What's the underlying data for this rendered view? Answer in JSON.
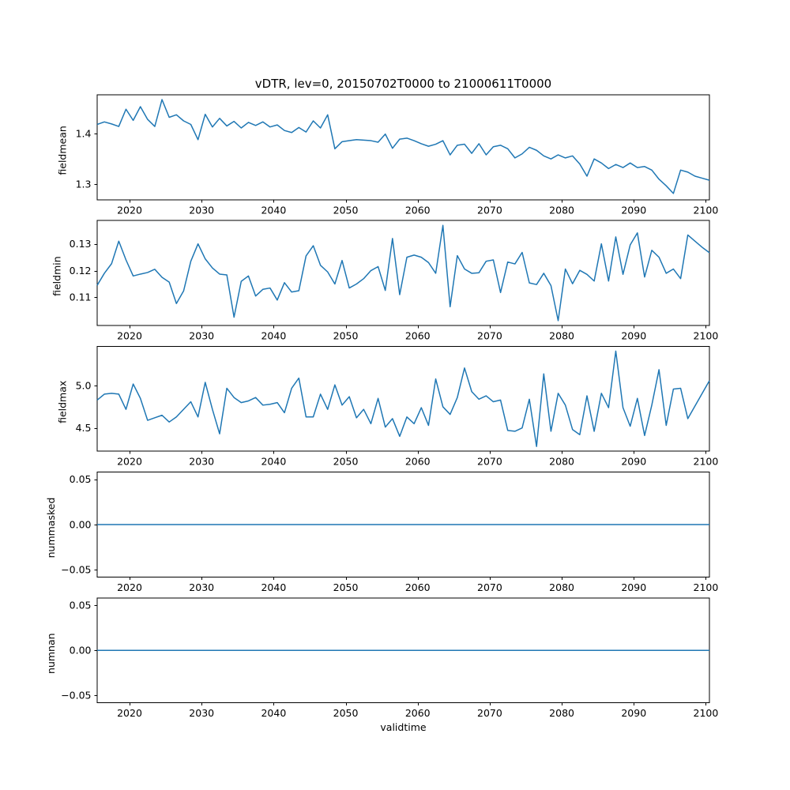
{
  "figure": {
    "title": "vDTR, lev=0, 20150702T0000 to 21000611T0000",
    "background_color": "#ffffff",
    "axis_color": "#000000",
    "text_color": "#000000",
    "line_color": "#1f77b4"
  },
  "chart_data": {
    "type": "line",
    "title": "vDTR, lev=0, 20150702T0000 to 21000611T0000",
    "xlabel": "validtime",
    "legend": "none",
    "grid": false,
    "xlim": [
      2015.5,
      2100.5
    ],
    "xticks": [
      2020,
      2030,
      2040,
      2050,
      2060,
      2070,
      2080,
      2090,
      2100
    ],
    "x": [
      2015.5,
      2016.5,
      2017.5,
      2018.5,
      2019.5,
      2020.5,
      2021.5,
      2022.5,
      2023.5,
      2024.5,
      2025.5,
      2026.5,
      2027.5,
      2028.5,
      2029.5,
      2030.5,
      2031.5,
      2032.5,
      2033.5,
      2034.5,
      2035.5,
      2036.5,
      2037.5,
      2038.5,
      2039.5,
      2040.5,
      2041.5,
      2042.5,
      2043.5,
      2044.5,
      2045.5,
      2046.5,
      2047.5,
      2048.5,
      2049.5,
      2050.5,
      2051.5,
      2052.5,
      2053.5,
      2054.5,
      2055.5,
      2056.5,
      2057.5,
      2058.5,
      2059.5,
      2060.5,
      2061.5,
      2062.5,
      2063.5,
      2064.5,
      2065.5,
      2066.5,
      2067.5,
      2068.5,
      2069.5,
      2070.5,
      2071.5,
      2072.5,
      2073.5,
      2074.5,
      2075.5,
      2076.5,
      2077.5,
      2078.5,
      2079.5,
      2080.5,
      2081.5,
      2082.5,
      2083.5,
      2084.5,
      2085.5,
      2086.5,
      2087.5,
      2088.5,
      2089.5,
      2090.5,
      2091.5,
      2092.5,
      2093.5,
      2094.5,
      2095.5,
      2096.5,
      2097.5,
      2098.5,
      2099.5,
      2100.5
    ],
    "subplots": [
      {
        "ylabel": "fieldmean",
        "ylim": [
          1.2696,
          1.4764
        ],
        "ytick_values": [
          1.3,
          1.4
        ],
        "ytick_labels": [
          "1.3",
          "1.4"
        ],
        "values": [
          1.418,
          1.423,
          1.419,
          1.414,
          1.448,
          1.426,
          1.453,
          1.428,
          1.414,
          1.467,
          1.432,
          1.437,
          1.425,
          1.418,
          1.388,
          1.438,
          1.413,
          1.43,
          1.415,
          1.424,
          1.411,
          1.422,
          1.416,
          1.423,
          1.413,
          1.417,
          1.406,
          1.402,
          1.412,
          1.403,
          1.425,
          1.411,
          1.437,
          1.37,
          1.384,
          1.386,
          1.388,
          1.387,
          1.386,
          1.383,
          1.399,
          1.371,
          1.389,
          1.391,
          1.386,
          1.38,
          1.375,
          1.379,
          1.386,
          1.358,
          1.377,
          1.379,
          1.361,
          1.38,
          1.358,
          1.374,
          1.377,
          1.37,
          1.352,
          1.36,
          1.373,
          1.367,
          1.356,
          1.35,
          1.358,
          1.352,
          1.356,
          1.34,
          1.316,
          1.35,
          1.342,
          1.331,
          1.339,
          1.333,
          1.342,
          1.333,
          1.335,
          1.328,
          1.31,
          1.297,
          1.282,
          1.328,
          1.324,
          1.316,
          1.312,
          1.308
        ]
      },
      {
        "ylabel": "fieldmin",
        "ylim": [
          0.0995,
          0.1387
        ],
        "ytick_values": [
          0.11,
          0.12,
          0.13
        ],
        "ytick_labels": [
          "0.11",
          "0.12",
          "0.13"
        ],
        "values": [
          0.1145,
          0.119,
          0.1226,
          0.131,
          0.124,
          0.118,
          0.1187,
          0.1193,
          0.1205,
          0.1175,
          0.1157,
          0.1077,
          0.1124,
          0.1235,
          0.13,
          0.1244,
          0.121,
          0.1187,
          0.1184,
          0.1026,
          0.116,
          0.118,
          0.1105,
          0.113,
          0.1135,
          0.109,
          0.1155,
          0.112,
          0.1125,
          0.1255,
          0.1293,
          0.122,
          0.1195,
          0.115,
          0.1238,
          0.1135,
          0.115,
          0.117,
          0.12,
          0.1215,
          0.1126,
          0.132,
          0.111,
          0.125,
          0.1258,
          0.125,
          0.123,
          0.119,
          0.1369,
          0.1065,
          0.1256,
          0.1206,
          0.119,
          0.1192,
          0.1235,
          0.124,
          0.1118,
          0.1232,
          0.1225,
          0.1268,
          0.1154,
          0.1148,
          0.119,
          0.1144,
          0.1013,
          0.1206,
          0.1151,
          0.1201,
          0.1186,
          0.1161,
          0.13,
          0.1161,
          0.1326,
          0.1186,
          0.1296,
          0.1341,
          0.1176,
          0.1276,
          0.125,
          0.119,
          0.1206,
          0.117,
          0.1333,
          0.131,
          0.1287,
          0.1267
        ]
      },
      {
        "ylabel": "fieldmax",
        "ylim": [
          4.2235,
          5.4665
        ],
        "ytick_values": [
          4.5,
          5.0
        ],
        "ytick_labels": [
          "4.5",
          "5.0"
        ],
        "values": [
          4.83,
          4.9,
          4.91,
          4.9,
          4.72,
          5.02,
          4.85,
          4.59,
          4.62,
          4.65,
          4.57,
          4.63,
          4.72,
          4.81,
          4.63,
          5.04,
          4.72,
          4.43,
          4.97,
          4.86,
          4.8,
          4.82,
          4.86,
          4.77,
          4.78,
          4.8,
          4.68,
          4.97,
          5.09,
          4.63,
          4.63,
          4.9,
          4.72,
          5.01,
          4.77,
          4.87,
          4.62,
          4.72,
          4.55,
          4.85,
          4.51,
          4.61,
          4.4,
          4.63,
          4.55,
          4.74,
          4.53,
          5.08,
          4.75,
          4.66,
          4.86,
          5.21,
          4.93,
          4.84,
          4.88,
          4.81,
          4.83,
          4.47,
          4.46,
          4.5,
          4.84,
          4.28,
          5.14,
          4.46,
          4.91,
          4.77,
          4.48,
          4.42,
          4.88,
          4.46,
          4.91,
          4.74,
          5.41,
          4.74,
          4.52,
          4.85,
          4.41,
          4.77,
          5.19,
          4.53,
          4.96,
          4.97,
          4.61,
          4.76,
          4.91,
          5.06
        ]
      },
      {
        "ylabel": "nummasked",
        "ylim": [
          -0.058,
          0.058
        ],
        "ytick_values": [
          -0.05,
          0.0,
          0.05
        ],
        "ytick_labels": [
          "−0.05",
          "0.00",
          "0.05"
        ],
        "values": [
          0,
          0,
          0,
          0,
          0,
          0,
          0,
          0,
          0,
          0,
          0,
          0,
          0,
          0,
          0,
          0,
          0,
          0,
          0,
          0,
          0,
          0,
          0,
          0,
          0,
          0,
          0,
          0,
          0,
          0,
          0,
          0,
          0,
          0,
          0,
          0,
          0,
          0,
          0,
          0,
          0,
          0,
          0,
          0,
          0,
          0,
          0,
          0,
          0,
          0,
          0,
          0,
          0,
          0,
          0,
          0,
          0,
          0,
          0,
          0,
          0,
          0,
          0,
          0,
          0,
          0,
          0,
          0,
          0,
          0,
          0,
          0,
          0,
          0,
          0,
          0,
          0,
          0,
          0,
          0,
          0,
          0,
          0,
          0,
          0,
          0
        ]
      },
      {
        "ylabel": "numnan",
        "ylim": [
          -0.058,
          0.058
        ],
        "ytick_values": [
          -0.05,
          0.0,
          0.05
        ],
        "ytick_labels": [
          "−0.05",
          "0.00",
          "0.05"
        ],
        "values": [
          0,
          0,
          0,
          0,
          0,
          0,
          0,
          0,
          0,
          0,
          0,
          0,
          0,
          0,
          0,
          0,
          0,
          0,
          0,
          0,
          0,
          0,
          0,
          0,
          0,
          0,
          0,
          0,
          0,
          0,
          0,
          0,
          0,
          0,
          0,
          0,
          0,
          0,
          0,
          0,
          0,
          0,
          0,
          0,
          0,
          0,
          0,
          0,
          0,
          0,
          0,
          0,
          0,
          0,
          0,
          0,
          0,
          0,
          0,
          0,
          0,
          0,
          0,
          0,
          0,
          0,
          0,
          0,
          0,
          0,
          0,
          0,
          0,
          0,
          0,
          0,
          0,
          0,
          0,
          0,
          0,
          0,
          0,
          0,
          0,
          0
        ]
      }
    ]
  }
}
